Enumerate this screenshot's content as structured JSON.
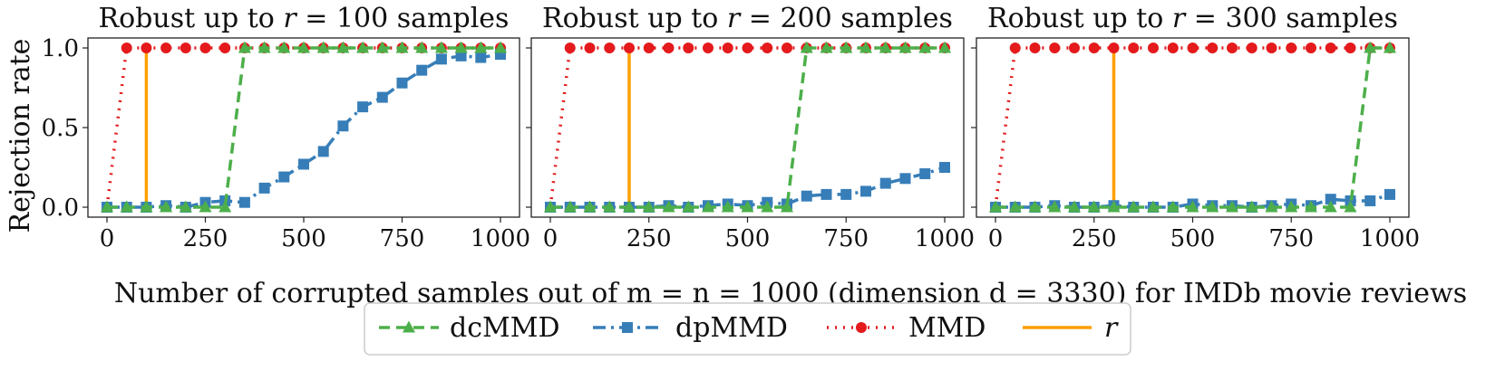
{
  "figure": {
    "ylabel": "Rejection rate",
    "xlabel": "Number of corrupted samples out of m = n = 1000 (dimension d = 3330) for IMDb movie reviews"
  },
  "colors": {
    "dcMMD": "#4daf4a",
    "dpMMD": "#377eb8",
    "MMD": "#e41a1c",
    "r": "#ff9f00",
    "axis": "#222222"
  },
  "legend": [
    {
      "key": "dcMMD",
      "label": "dcMMD"
    },
    {
      "key": "dpMMD",
      "label": "dpMMD"
    },
    {
      "key": "MMD",
      "label": "MMD"
    },
    {
      "key": "r",
      "label": "r"
    }
  ],
  "chart_data": [
    {
      "type": "line",
      "title_prefix": "Robust up to ",
      "title_var": "r",
      "title_suffix": " = 100 samples",
      "xlim": [
        0,
        1000
      ],
      "ylim": [
        0,
        1
      ],
      "xticks": [
        0,
        250,
        500,
        750,
        1000
      ],
      "yticks": [
        0.0,
        0.5,
        1.0
      ],
      "r_value": 100,
      "x": [
        0,
        50,
        100,
        150,
        200,
        250,
        300,
        350,
        400,
        450,
        500,
        550,
        600,
        650,
        700,
        750,
        800,
        850,
        900,
        950,
        1000
      ],
      "series": [
        {
          "name": "MMD",
          "values": [
            0.0,
            1,
            1,
            1,
            1,
            1,
            1,
            1,
            1,
            1,
            1,
            1,
            1,
            1,
            1,
            1,
            1,
            1,
            1,
            1,
            1
          ]
        },
        {
          "name": "dcMMD",
          "values": [
            0,
            0,
            0,
            0,
            0,
            0,
            0,
            1,
            1,
            1,
            1,
            1,
            1,
            1,
            1,
            1,
            1,
            1,
            1,
            1,
            1
          ]
        },
        {
          "name": "dpMMD",
          "values": [
            0.0,
            0.0,
            0.0,
            0.01,
            0.0,
            0.03,
            0.04,
            0.03,
            0.12,
            0.19,
            0.27,
            0.35,
            0.51,
            0.63,
            0.69,
            0.78,
            0.86,
            0.93,
            0.95,
            0.94,
            0.96
          ]
        }
      ]
    },
    {
      "type": "line",
      "title_prefix": "Robust up to ",
      "title_var": "r",
      "title_suffix": " = 200 samples",
      "xlim": [
        0,
        1000
      ],
      "ylim": [
        0,
        1
      ],
      "xticks": [
        0,
        250,
        500,
        750,
        1000
      ],
      "yticks": [
        0.0,
        0.5,
        1.0
      ],
      "r_value": 200,
      "x": [
        0,
        50,
        100,
        150,
        200,
        250,
        300,
        350,
        400,
        450,
        500,
        550,
        600,
        650,
        700,
        750,
        800,
        850,
        900,
        950,
        1000
      ],
      "series": [
        {
          "name": "MMD",
          "values": [
            0.0,
            1,
            1,
            1,
            1,
            1,
            1,
            1,
            1,
            1,
            1,
            1,
            1,
            1,
            1,
            1,
            1,
            1,
            1,
            1,
            1
          ]
        },
        {
          "name": "dcMMD",
          "values": [
            0,
            0,
            0,
            0,
            0,
            0,
            0,
            0,
            0,
            0,
            0,
            0,
            0,
            1,
            1,
            1,
            1,
            1,
            1,
            1,
            1
          ]
        },
        {
          "name": "dpMMD",
          "values": [
            0.0,
            0.0,
            0.0,
            0.0,
            0.0,
            0.0,
            0.01,
            0.0,
            0.01,
            0.02,
            0.01,
            0.03,
            0.02,
            0.07,
            0.08,
            0.08,
            0.1,
            0.15,
            0.18,
            0.21,
            0.25
          ]
        }
      ]
    },
    {
      "type": "line",
      "title_prefix": "Robust up to ",
      "title_var": "r",
      "title_suffix": " = 300 samples",
      "xlim": [
        0,
        1000
      ],
      "ylim": [
        0,
        1
      ],
      "xticks": [
        0,
        250,
        500,
        750,
        1000
      ],
      "yticks": [
        0.0,
        0.5,
        1.0
      ],
      "r_value": 300,
      "x": [
        0,
        50,
        100,
        150,
        200,
        250,
        300,
        350,
        400,
        450,
        500,
        550,
        600,
        650,
        700,
        750,
        800,
        850,
        900,
        950,
        1000
      ],
      "series": [
        {
          "name": "MMD",
          "values": [
            0.0,
            1,
            1,
            1,
            1,
            1,
            1,
            1,
            1,
            1,
            1,
            1,
            1,
            1,
            1,
            1,
            1,
            1,
            1,
            1,
            1
          ]
        },
        {
          "name": "dcMMD",
          "values": [
            0,
            0,
            0,
            0,
            0,
            0,
            0,
            0,
            0,
            0,
            0,
            0,
            0,
            0,
            0,
            0,
            0,
            0,
            0,
            1,
            1
          ]
        },
        {
          "name": "dpMMD",
          "values": [
            0.0,
            0.0,
            0.0,
            0.01,
            0.0,
            0.0,
            0.01,
            0.0,
            0.0,
            0.0,
            0.02,
            0.01,
            0.01,
            0.0,
            0.01,
            0.02,
            0.01,
            0.05,
            0.04,
            0.04,
            0.08
          ]
        }
      ]
    }
  ]
}
